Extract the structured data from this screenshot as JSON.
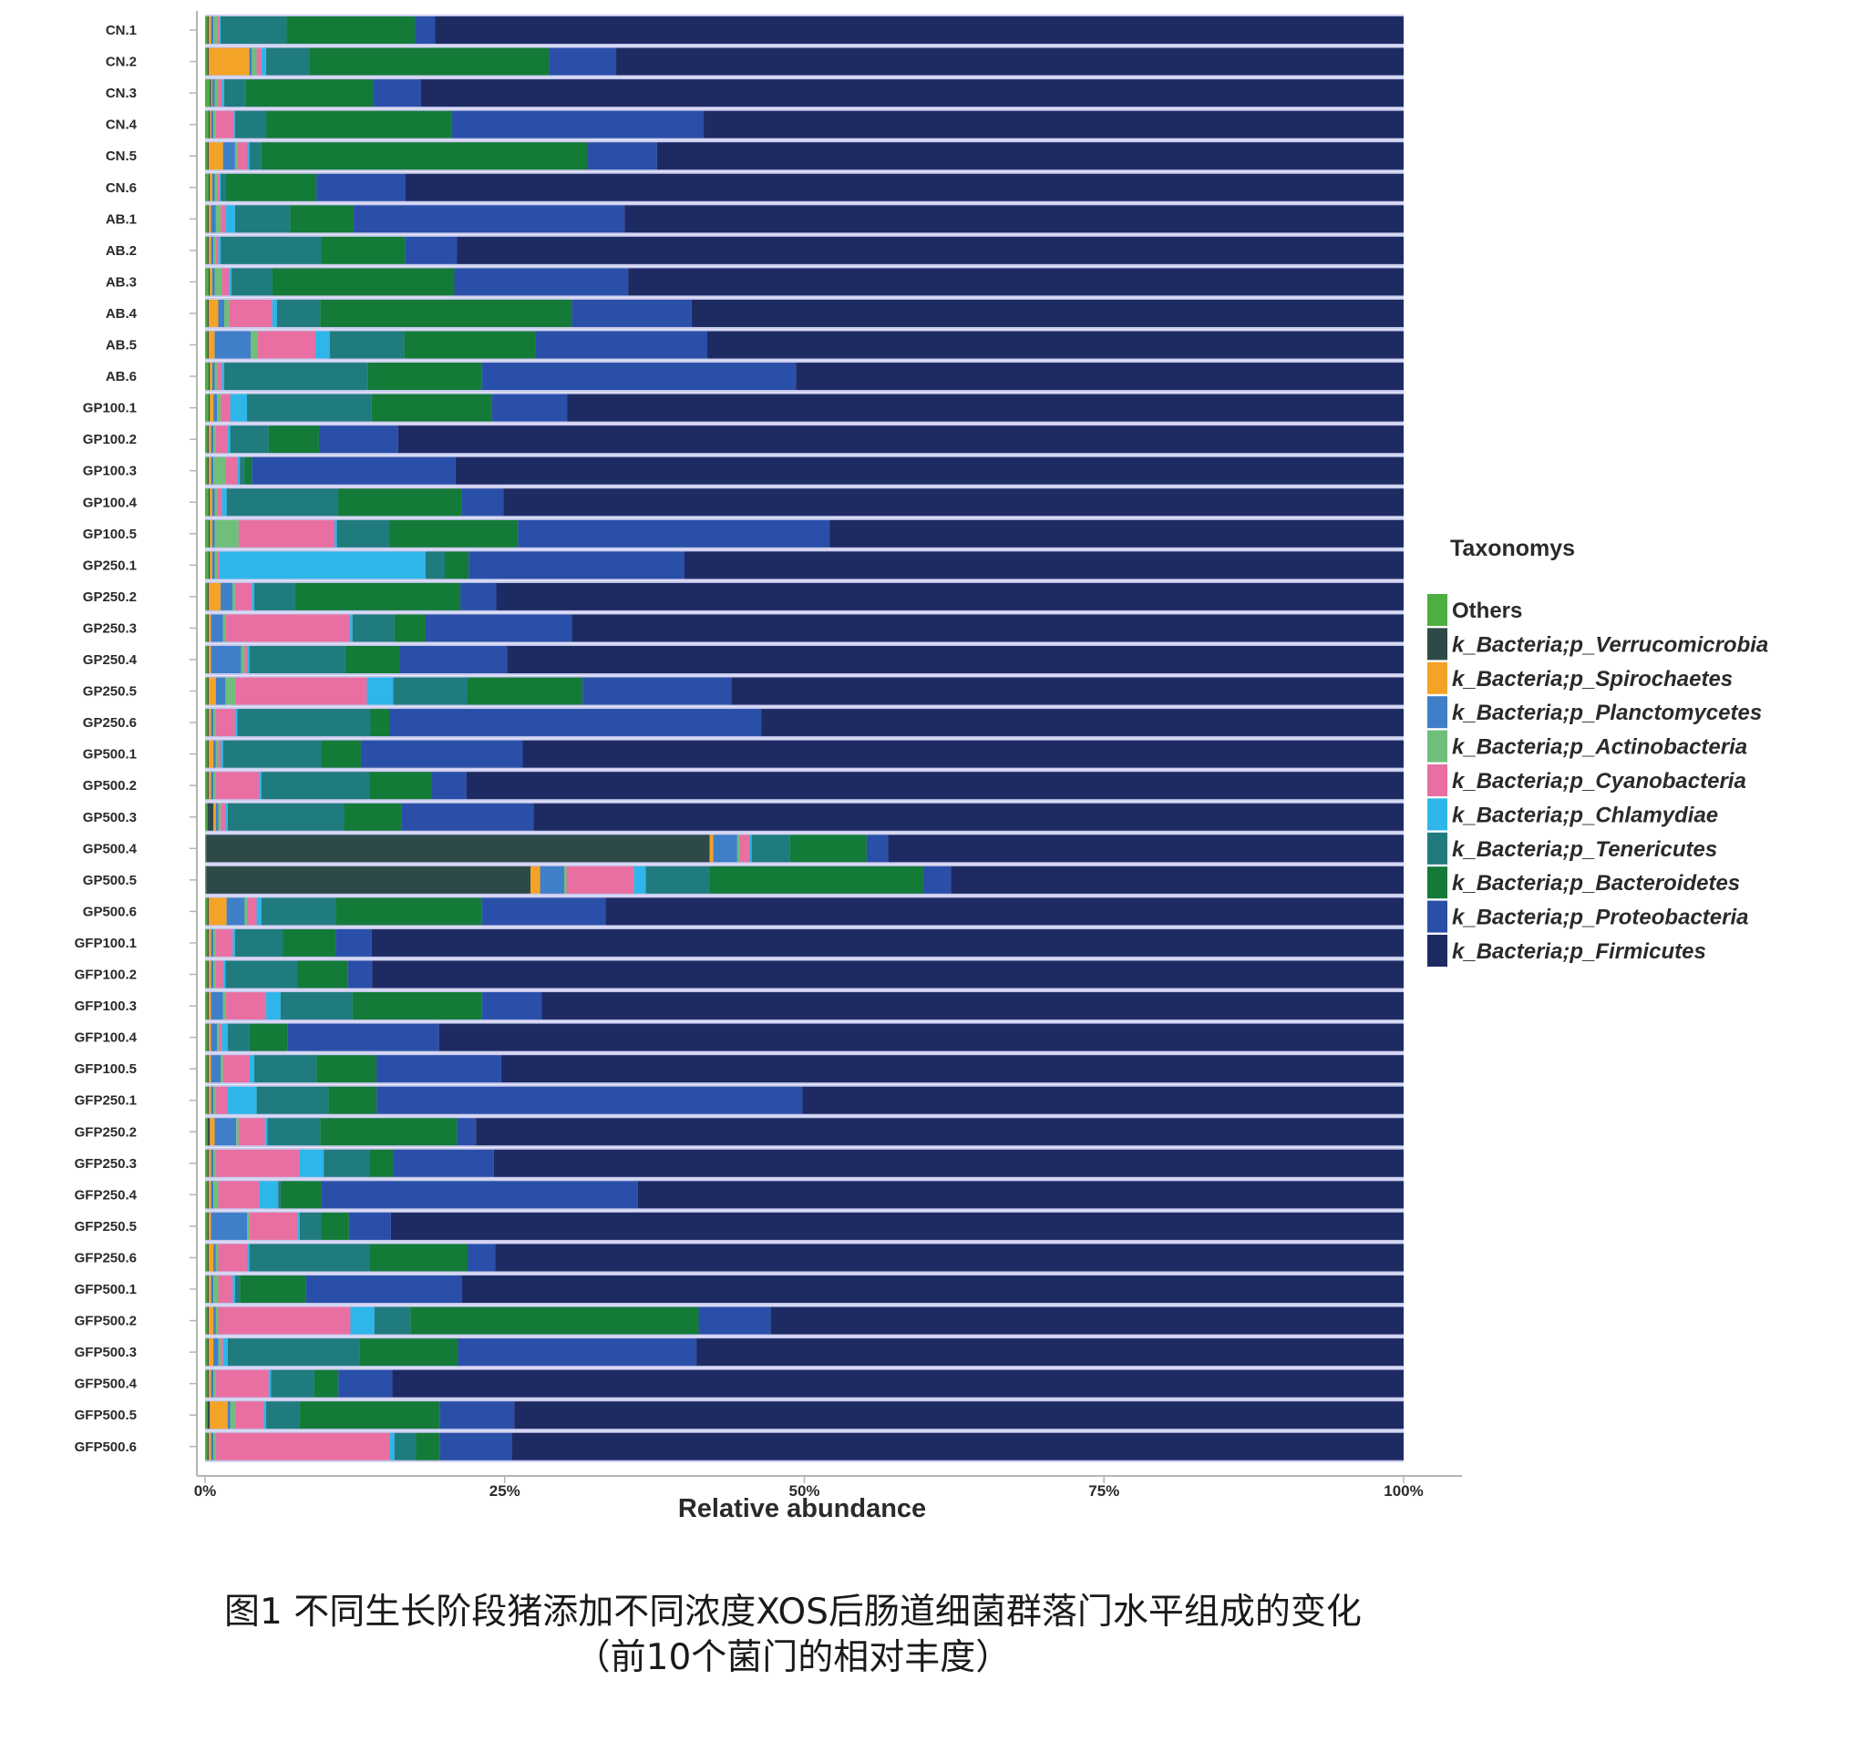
{
  "chart_data": {
    "type": "bar",
    "orientation": "horizontal",
    "stacked": true,
    "xlabel": "Relative abundance",
    "ylabel": "",
    "xlim": [
      0,
      1
    ],
    "x_ticks": [
      "0%",
      "25%",
      "50%",
      "75%",
      "100%"
    ],
    "legend_title": "Taxonomys",
    "legend_position": "right",
    "categories": [
      "CN.1",
      "CN.2",
      "CN.3",
      "CN.4",
      "CN.5",
      "CN.6",
      "AB.1",
      "AB.2",
      "AB.3",
      "AB.4",
      "AB.5",
      "AB.6",
      "GP100.1",
      "GP100.2",
      "GP100.3",
      "GP100.4",
      "GP100.5",
      "GP250.1",
      "GP250.2",
      "GP250.3",
      "GP250.4",
      "GP250.5",
      "GP250.6",
      "GP500.1",
      "GP500.2",
      "GP500.3",
      "GP500.4",
      "GP500.5",
      "GP500.6",
      "GFP100.1",
      "GFP100.2",
      "GFP100.3",
      "GFP100.4",
      "GFP100.5",
      "GFP250.1",
      "GFP250.2",
      "GFP250.3",
      "GFP250.4",
      "GFP250.5",
      "GFP250.6",
      "GFP500.1",
      "GFP500.2",
      "GFP500.3",
      "GFP500.4",
      "GFP500.5",
      "GFP500.6"
    ],
    "series": [
      {
        "name": "Others",
        "color": "#4caf3f",
        "values": [
          0.002,
          0.002,
          0.004,
          0.003,
          0.002,
          0.003,
          0.002,
          0.002,
          0.003,
          0.002,
          0.002,
          0.003,
          0.003,
          0.002,
          0.002,
          0.003,
          0.003,
          0.003,
          0.002,
          0.002,
          0.002,
          0.002,
          0.002,
          0.002,
          0.002,
          0.002,
          0.001,
          0.001,
          0.002,
          0.002,
          0.002,
          0.002,
          0.002,
          0.002,
          0.002,
          0.002,
          0.002,
          0.002,
          0.002,
          0.002,
          0.002,
          0.002,
          0.002,
          0.002,
          0.002,
          0.002
        ]
      },
      {
        "name": "k_Bacteria;p_Verrucomicrobia",
        "color": "#2e4a48",
        "values": [
          0.001,
          0.001,
          0.001,
          0.001,
          0.001,
          0.001,
          0.001,
          0.001,
          0.001,
          0.001,
          0.001,
          0.001,
          0.001,
          0.001,
          0.001,
          0.001,
          0.001,
          0.001,
          0.001,
          0.001,
          0.001,
          0.001,
          0.001,
          0.001,
          0.001,
          0.005,
          0.42,
          0.27,
          0.001,
          0.001,
          0.001,
          0.001,
          0.001,
          0.001,
          0.001,
          0.002,
          0.001,
          0.001,
          0.001,
          0.001,
          0.001,
          0.001,
          0.001,
          0.001,
          0.002,
          0.001
        ]
      },
      {
        "name": "k_Bacteria;p_Spirochaetes",
        "color": "#f3a325",
        "values": [
          0.002,
          0.034,
          0.001,
          0.001,
          0.012,
          0.002,
          0.002,
          0.002,
          0.002,
          0.008,
          0.005,
          0.002,
          0.003,
          0.002,
          0.002,
          0.002,
          0.002,
          0.002,
          0.01,
          0.002,
          0.002,
          0.006,
          0.002,
          0.004,
          0.002,
          0.002,
          0.003,
          0.008,
          0.015,
          0.002,
          0.002,
          0.002,
          0.002,
          0.002,
          0.002,
          0.004,
          0.002,
          0.002,
          0.002,
          0.004,
          0.002,
          0.004,
          0.004,
          0.002,
          0.015,
          0.002
        ]
      },
      {
        "name": "k_Bacteria;p_Planctomycetes",
        "color": "#3f7fc8",
        "values": [
          0.002,
          0.002,
          0.002,
          0.002,
          0.01,
          0.002,
          0.004,
          0.002,
          0.002,
          0.005,
          0.03,
          0.002,
          0.003,
          0.002,
          0.002,
          0.002,
          0.002,
          0.002,
          0.01,
          0.01,
          0.025,
          0.008,
          0.002,
          0.002,
          0.002,
          0.002,
          0.02,
          0.02,
          0.015,
          0.002,
          0.002,
          0.01,
          0.005,
          0.008,
          0.002,
          0.018,
          0.002,
          0.002,
          0.03,
          0.002,
          0.002,
          0.002,
          0.004,
          0.002,
          0.002,
          0.002
        ]
      },
      {
        "name": "k_Bacteria;p_Actinobacteria",
        "color": "#6fbf7a",
        "values": [
          0.003,
          0.004,
          0.003,
          0.002,
          0.002,
          0.002,
          0.004,
          0.002,
          0.006,
          0.004,
          0.006,
          0.002,
          0.003,
          0.002,
          0.01,
          0.002,
          0.02,
          0.002,
          0.002,
          0.002,
          0.003,
          0.008,
          0.002,
          0.002,
          0.002,
          0.002,
          0.002,
          0.002,
          0.002,
          0.002,
          0.002,
          0.002,
          0.002,
          0.002,
          0.002,
          0.002,
          0.002,
          0.004,
          0.002,
          0.002,
          0.004,
          0.002,
          0.002,
          0.002,
          0.004,
          0.002
        ]
      },
      {
        "name": "k_Bacteria;p_Cyanobacteria",
        "color": "#e96fa2",
        "values": [
          0.002,
          0.004,
          0.003,
          0.015,
          0.008,
          0.002,
          0.004,
          0.002,
          0.006,
          0.036,
          0.048,
          0.004,
          0.008,
          0.01,
          0.01,
          0.004,
          0.08,
          0.002,
          0.014,
          0.104,
          0.002,
          0.11,
          0.016,
          0.002,
          0.036,
          0.004,
          0.008,
          0.056,
          0.008,
          0.014,
          0.006,
          0.034,
          0.002,
          0.022,
          0.01,
          0.022,
          0.07,
          0.034,
          0.04,
          0.024,
          0.012,
          0.11,
          0.002,
          0.044,
          0.024,
          0.145
        ]
      },
      {
        "name": "k_Bacteria;p_Chlamydiae",
        "color": "#2eb6ea",
        "values": [
          0.001,
          0.004,
          0.002,
          0.001,
          0.002,
          0.001,
          0.008,
          0.002,
          0.002,
          0.004,
          0.012,
          0.002,
          0.014,
          0.002,
          0.002,
          0.004,
          0.002,
          0.172,
          0.002,
          0.002,
          0.002,
          0.022,
          0.002,
          0.002,
          0.002,
          0.002,
          0.002,
          0.01,
          0.004,
          0.002,
          0.002,
          0.012,
          0.005,
          0.004,
          0.024,
          0.002,
          0.02,
          0.016,
          0.002,
          0.002,
          0.002,
          0.02,
          0.004,
          0.002,
          0.002,
          0.004
        ]
      },
      {
        "name": "k_Bacteria;p_Tenericutes",
        "color": "#1f7b7e",
        "values": [
          0.055,
          0.036,
          0.018,
          0.026,
          0.01,
          0.004,
          0.046,
          0.084,
          0.034,
          0.036,
          0.062,
          0.12,
          0.104,
          0.032,
          0.004,
          0.093,
          0.044,
          0.016,
          0.034,
          0.035,
          0.08,
          0.062,
          0.111,
          0.082,
          0.09,
          0.097,
          0.032,
          0.053,
          0.062,
          0.04,
          0.06,
          0.06,
          0.018,
          0.052,
          0.06,
          0.044,
          0.038,
          0.002,
          0.018,
          0.1,
          0.004,
          0.03,
          0.11,
          0.036,
          0.028,
          0.018
        ]
      },
      {
        "name": "k_Bacteria;p_Bacteroidetes",
        "color": "#137a38",
        "values": [
          0.107,
          0.2,
          0.106,
          0.155,
          0.272,
          0.076,
          0.053,
          0.07,
          0.152,
          0.21,
          0.11,
          0.095,
          0.1,
          0.042,
          0.006,
          0.103,
          0.107,
          0.02,
          0.138,
          0.026,
          0.045,
          0.096,
          0.016,
          0.033,
          0.052,
          0.048,
          0.064,
          0.178,
          0.122,
          0.044,
          0.042,
          0.108,
          0.032,
          0.05,
          0.04,
          0.114,
          0.02,
          0.034,
          0.023,
          0.082,
          0.055,
          0.24,
          0.082,
          0.02,
          0.117,
          0.02
        ]
      },
      {
        "name": "k_Bacteria;p_Proteobacteria",
        "color": "#2a4fa8",
        "values": [
          0.017,
          0.056,
          0.04,
          0.21,
          0.058,
          0.074,
          0.226,
          0.043,
          0.145,
          0.1,
          0.143,
          0.262,
          0.063,
          0.066,
          0.17,
          0.035,
          0.26,
          0.18,
          0.03,
          0.122,
          0.09,
          0.124,
          0.31,
          0.135,
          0.029,
          0.11,
          0.018,
          0.023,
          0.103,
          0.03,
          0.02,
          0.05,
          0.126,
          0.104,
          0.355,
          0.016,
          0.084,
          0.264,
          0.035,
          0.023,
          0.13,
          0.06,
          0.199,
          0.045,
          0.062,
          0.06
        ]
      },
      {
        "name": "k_Bacteria;p_Firmicutes",
        "color": "#1e2b63",
        "values": [
          0.808,
          0.657,
          0.82,
          0.584,
          0.623,
          0.833,
          0.65,
          0.79,
          0.647,
          0.594,
          0.581,
          0.507,
          0.698,
          0.839,
          0.791,
          0.751,
          0.479,
          0.6,
          0.757,
          0.694,
          0.748,
          0.561,
          0.536,
          0.735,
          0.782,
          0.726,
          0.43,
          0.377,
          0.666,
          0.861,
          0.859,
          0.719,
          0.804,
          0.753,
          0.501,
          0.774,
          0.759,
          0.639,
          0.845,
          0.758,
          0.784,
          0.527,
          0.59,
          0.842,
          0.742,
          0.744
        ]
      }
    ]
  },
  "caption": {
    "line1": "图1 不同生长阶段猪添加不同浓度XOS后肠道细菌群落门水平组成的变化",
    "line2": "（前10个菌门的相对丰度）"
  }
}
